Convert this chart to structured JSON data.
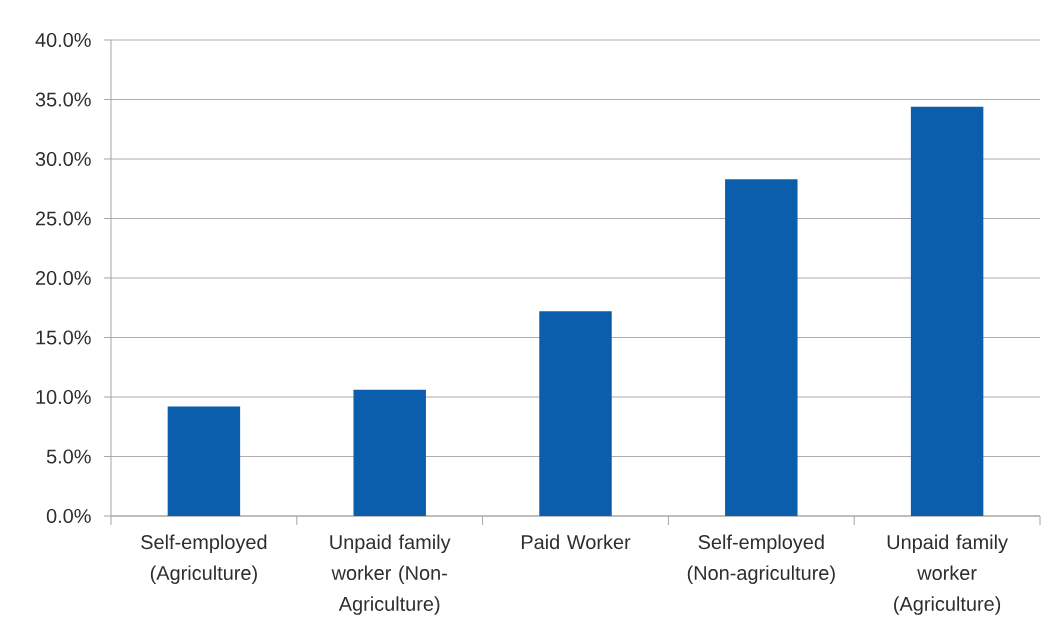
{
  "chart_data": {
    "type": "bar",
    "categories": [
      "Self-employed (Agriculture)",
      "Unpaid family worker (Non-Agriculture)",
      "Paid Worker",
      "Self-employed (Non-agriculture)",
      "Unpaid family worker (Agriculture)"
    ],
    "values": [
      9.2,
      10.6,
      17.2,
      28.3,
      34.4
    ],
    "color": "#0a5eab",
    "ylim": [
      0,
      40
    ],
    "yticks": [
      {
        "value": 0,
        "label": "0.0%"
      },
      {
        "value": 5,
        "label": "5.0%"
      },
      {
        "value": 10,
        "label": "10.0%"
      },
      {
        "value": 15,
        "label": "15.0%"
      },
      {
        "value": 20,
        "label": "20.0%"
      },
      {
        "value": 25,
        "label": "25.0%"
      },
      {
        "value": 30,
        "label": "30.0%"
      },
      {
        "value": 35,
        "label": "35.0%"
      },
      {
        "value": 40,
        "label": "40.0%"
      }
    ],
    "grid": "y"
  }
}
